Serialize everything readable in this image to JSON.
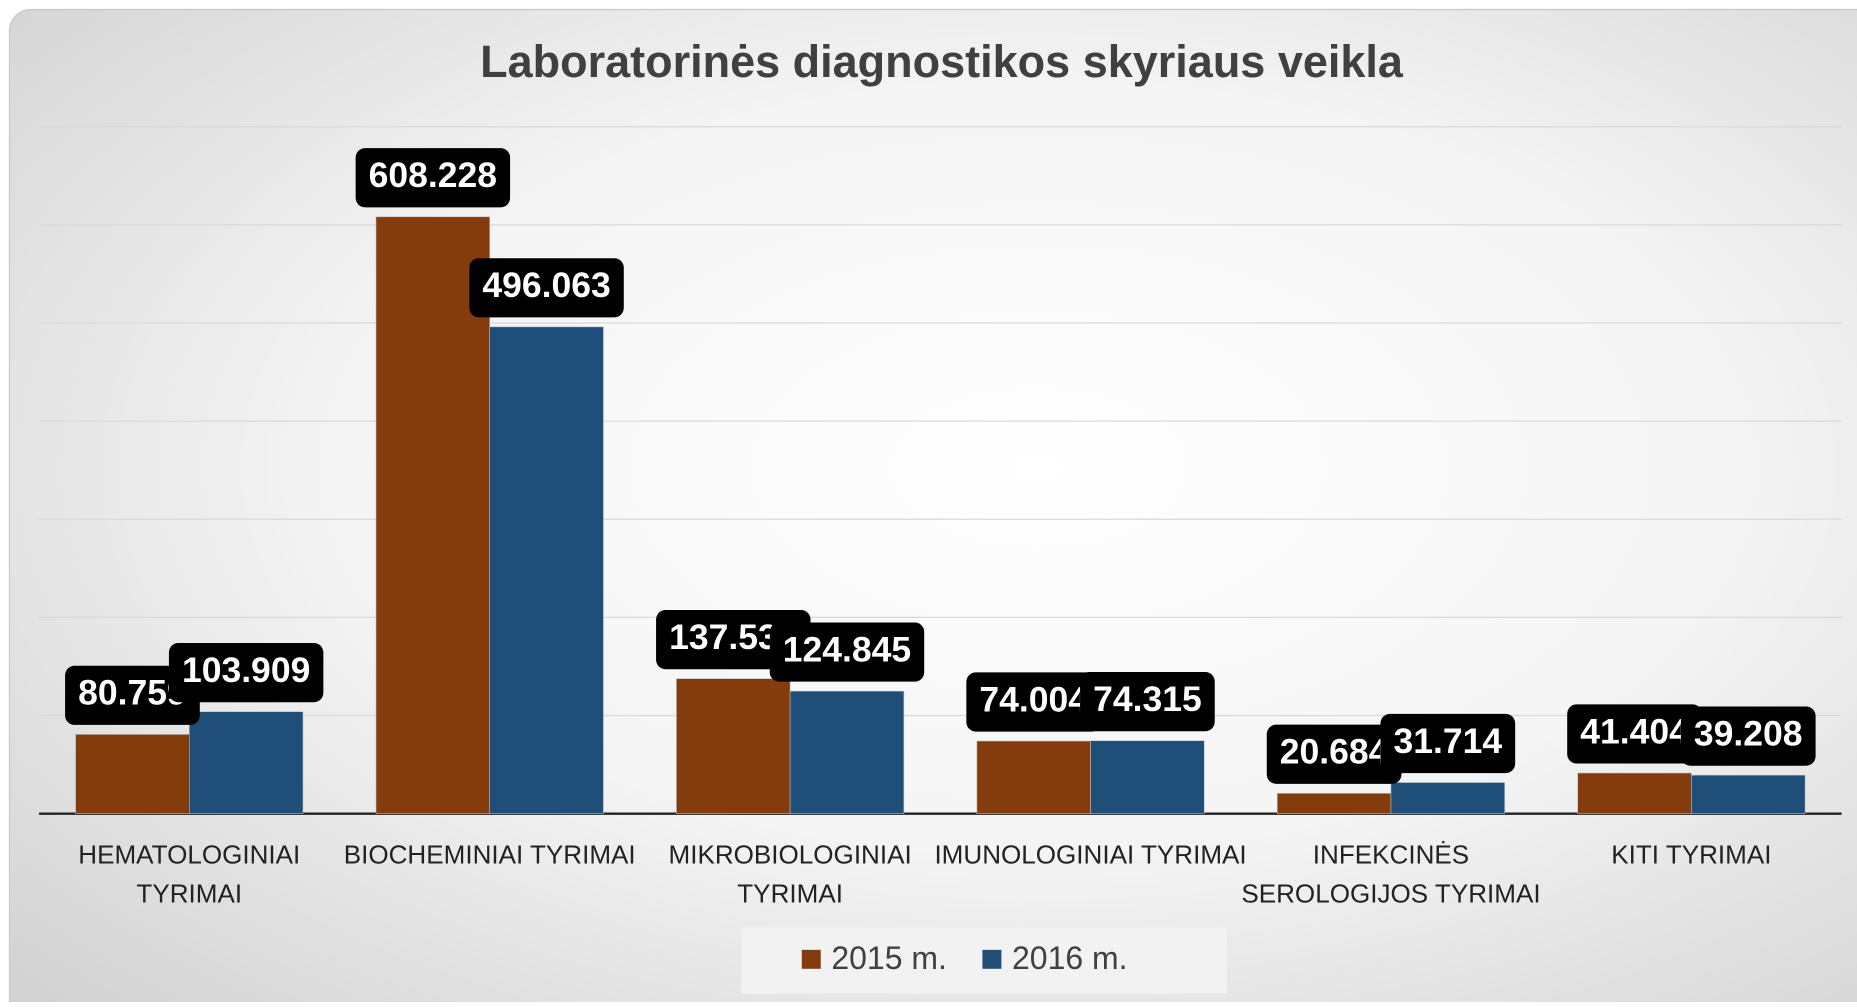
{
  "chart_data": {
    "type": "bar",
    "title": "Laboratorinės diagnostikos skyriaus veikla",
    "categories": [
      "HEMATOLOGINIAI TYRIMAI",
      "BIOCHEMINIAI TYRIMAI",
      "MIKROBIOLOGINIAI TYRIMAI",
      "IMUNOLOGINIAI TYRIMAI",
      "INFEKCINĖS SEROLOGIJOS TYRIMAI",
      "KITI TYRIMAI"
    ],
    "series": [
      {
        "name": "2015 m.",
        "color": "#843c0c",
        "values": [
          80.759,
          608.228,
          137.539,
          74.004,
          20.684,
          41.404
        ]
      },
      {
        "name": "2016 m.",
        "color": "#1f4e79",
        "values": [
          103.909,
          496.063,
          124.845,
          74.315,
          31.714,
          39.208
        ]
      }
    ],
    "ylim": [
      0,
      700
    ],
    "yticks": [
      0,
      100,
      200,
      300,
      400,
      500,
      600,
      700
    ],
    "ytick_labels": false,
    "grid": true,
    "legend": "bottom"
  }
}
